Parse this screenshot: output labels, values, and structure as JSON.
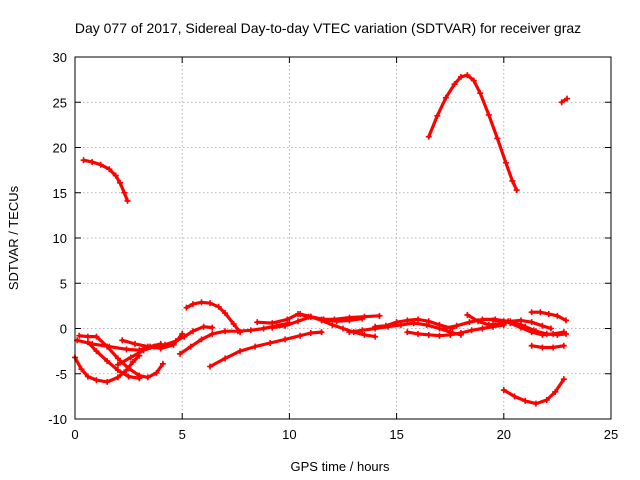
{
  "chart_data": {
    "type": "line",
    "title": "Day 077 of 2017, Sidereal Day-to-day VTEC variation (SDTVAR) for receiver graz",
    "xlabel": "GPS time / hours",
    "ylabel": "SDTVAR / TECUs",
    "xlim": [
      0,
      25
    ],
    "ylim": [
      -10,
      30
    ],
    "xticks": [
      0,
      5,
      10,
      15,
      20,
      25
    ],
    "yticks": [
      -10,
      -5,
      0,
      5,
      10,
      15,
      20,
      25,
      30
    ],
    "xtick_labels": [
      "0",
      "5",
      "10",
      "15",
      "20",
      "25"
    ],
    "ytick_labels": [
      "-10",
      "-5",
      "0",
      "5",
      "10",
      "15",
      "20",
      "25",
      "30"
    ],
    "grid": true,
    "marker": "plus",
    "color": "#ff0000",
    "series": [
      {
        "name": "s1",
        "x": [
          0.4,
          0.8,
          1.2,
          1.6,
          1.9,
          2.1,
          2.3,
          2.45
        ],
        "y": [
          18.6,
          18.4,
          18.1,
          17.6,
          16.9,
          16.1,
          15.0,
          14.1
        ]
      },
      {
        "name": "s2",
        "x": [
          16.5,
          16.9,
          17.3,
          17.7,
          18.0,
          18.3,
          18.6,
          18.9,
          19.3,
          19.7,
          20.1,
          20.4,
          20.6
        ],
        "y": [
          21.2,
          23.5,
          25.5,
          27.0,
          27.8,
          28.0,
          27.4,
          26.0,
          23.6,
          21.0,
          18.3,
          16.3,
          15.3
        ]
      },
      {
        "name": "s3",
        "x": [
          22.7,
          22.95
        ],
        "y": [
          25.0,
          25.4
        ]
      },
      {
        "name": "s4",
        "x": [
          0.0,
          0.3,
          0.6,
          1.0,
          1.5,
          2.0,
          2.4,
          2.7,
          3.0
        ],
        "y": [
          -3.2,
          -4.5,
          -5.3,
          -5.7,
          -5.9,
          -5.4,
          -4.6,
          -3.7,
          -3.0
        ]
      },
      {
        "name": "s5",
        "x": [
          0.1,
          0.8,
          1.6,
          2.4,
          3.0,
          3.5,
          4.0
        ],
        "y": [
          -1.3,
          -1.7,
          -2.0,
          -2.3,
          -2.4,
          -2.0,
          -1.7
        ]
      },
      {
        "name": "s6",
        "x": [
          0.2,
          0.6,
          1.0,
          1.5,
          2.0,
          2.5,
          3.0,
          3.4,
          3.8,
          4.1
        ],
        "y": [
          -0.8,
          -0.9,
          -0.9,
          -2.0,
          -3.3,
          -4.4,
          -5.2,
          -5.4,
          -4.9,
          -3.9
        ]
      },
      {
        "name": "s7",
        "x": [
          0.6,
          1.0,
          1.5,
          2.0,
          2.5,
          3.0
        ],
        "y": [
          -1.5,
          -2.5,
          -3.6,
          -4.6,
          -5.3,
          -5.5
        ]
      },
      {
        "name": "s8",
        "x": [
          2.2,
          2.8,
          3.4,
          4.0,
          4.6,
          5.0
        ],
        "y": [
          -1.3,
          -1.7,
          -2.0,
          -2.2,
          -1.8,
          -0.6
        ]
      },
      {
        "name": "s9",
        "x": [
          2.0,
          2.6,
          3.2,
          3.7,
          4.2,
          4.7,
          5.1,
          5.5,
          6.0,
          6.4
        ],
        "y": [
          -4.0,
          -3.2,
          -2.4,
          -2.0,
          -1.8,
          -1.4,
          -0.9,
          -0.3,
          0.2,
          0.1
        ]
      },
      {
        "name": "s10",
        "x": [
          5.2,
          5.5,
          5.9,
          6.3,
          6.7,
          7.0,
          7.4,
          7.7
        ],
        "y": [
          2.3,
          2.7,
          2.9,
          2.8,
          2.4,
          1.7,
          0.5,
          -0.4
        ]
      },
      {
        "name": "s11",
        "x": [
          4.9,
          5.4,
          5.9,
          6.4,
          7.0,
          7.6,
          8.2,
          8.8,
          9.4,
          10.0
        ],
        "y": [
          -2.8,
          -2.0,
          -1.2,
          -0.6,
          -0.3,
          -0.3,
          -0.2,
          0.0,
          0.3,
          0.6
        ]
      },
      {
        "name": "s12",
        "x": [
          6.3,
          7.0,
          7.7,
          8.4,
          9.1,
          9.8,
          10.5,
          11.0,
          11.5
        ],
        "y": [
          -4.2,
          -3.3,
          -2.5,
          -2.0,
          -1.6,
          -1.2,
          -0.8,
          -0.5,
          -0.4
        ]
      },
      {
        "name": "s13",
        "x": [
          8.5,
          9.2,
          9.9,
          10.4,
          10.9,
          11.5,
          12.1,
          12.8,
          13.5,
          14.2
        ],
        "y": [
          0.7,
          0.6,
          1.0,
          1.6,
          1.3,
          1.0,
          1.0,
          1.2,
          1.3,
          1.4
        ]
      },
      {
        "name": "s14",
        "x": [
          9.2,
          9.8,
          10.4,
          11.0,
          11.6,
          12.2,
          12.8,
          13.4
        ],
        "y": [
          0.1,
          0.3,
          0.8,
          1.3,
          1.0,
          0.8,
          0.9,
          1.1
        ]
      },
      {
        "name": "s15",
        "x": [
          10.5,
          11.0,
          11.5,
          12.0,
          12.5,
          13.0,
          13.5,
          14.0
        ],
        "y": [
          1.6,
          1.3,
          0.9,
          0.4,
          0.0,
          -0.4,
          -0.7,
          -0.9
        ]
      },
      {
        "name": "s16",
        "x": [
          12.8,
          13.4,
          14.0,
          14.6,
          15.2,
          15.8,
          16.4,
          17.0,
          17.5,
          18.0
        ],
        "y": [
          -0.4,
          -0.2,
          0.0,
          0.2,
          0.4,
          0.6,
          0.4,
          0.0,
          -0.4,
          -0.7
        ]
      },
      {
        "name": "s17",
        "x": [
          14.0,
          14.5,
          15.0,
          15.5,
          16.0,
          16.5,
          17.0,
          17.6
        ],
        "y": [
          0.2,
          0.3,
          0.7,
          0.9,
          1.0,
          0.8,
          0.4,
          0.0
        ]
      },
      {
        "name": "s18",
        "x": [
          15.5,
          16.0,
          16.5,
          17.0,
          17.5,
          18.0,
          18.5,
          19.0,
          19.5,
          20.0
        ],
        "y": [
          -0.4,
          -0.6,
          -0.7,
          -0.8,
          -0.7,
          -0.5,
          -0.2,
          0.0,
          0.2,
          0.4
        ]
      },
      {
        "name": "s19",
        "x": [
          17.2,
          17.8,
          18.4,
          19.0,
          19.6,
          20.2,
          20.8,
          21.4
        ],
        "y": [
          0.0,
          0.3,
          0.7,
          1.0,
          1.0,
          0.8,
          0.4,
          -0.2
        ]
      },
      {
        "name": "s20",
        "x": [
          18.3,
          18.8,
          19.3,
          19.8,
          20.3,
          20.8,
          21.3,
          21.8,
          22.2
        ],
        "y": [
          1.5,
          0.8,
          0.4,
          0.5,
          0.8,
          0.9,
          0.7,
          0.3,
          0.0
        ]
      },
      {
        "name": "s21",
        "x": [
          19.5,
          20.0,
          20.5,
          21.0,
          21.5,
          22.0,
          22.5,
          22.9
        ],
        "y": [
          0.9,
          0.8,
          0.6,
          0.2,
          -0.3,
          -0.6,
          -0.7,
          -0.6
        ]
      },
      {
        "name": "s22",
        "x": [
          20.3,
          20.8,
          21.3,
          21.8,
          22.3,
          22.8
        ],
        "y": [
          0.6,
          0.1,
          -0.4,
          -0.7,
          -0.6,
          -0.4
        ]
      },
      {
        "name": "s23",
        "x": [
          21.3,
          21.7,
          22.1,
          22.5,
          22.9
        ],
        "y": [
          1.8,
          1.8,
          1.6,
          1.4,
          0.9
        ]
      },
      {
        "name": "s24",
        "x": [
          21.3,
          21.8,
          22.3,
          22.8
        ],
        "y": [
          -1.9,
          -2.1,
          -2.1,
          -1.9
        ]
      },
      {
        "name": "s25",
        "x": [
          20.0,
          20.5,
          21.0,
          21.5,
          22.0,
          22.4,
          22.8
        ],
        "y": [
          -6.8,
          -7.5,
          -8.0,
          -8.3,
          -7.9,
          -7.0,
          -5.6
        ]
      }
    ]
  }
}
